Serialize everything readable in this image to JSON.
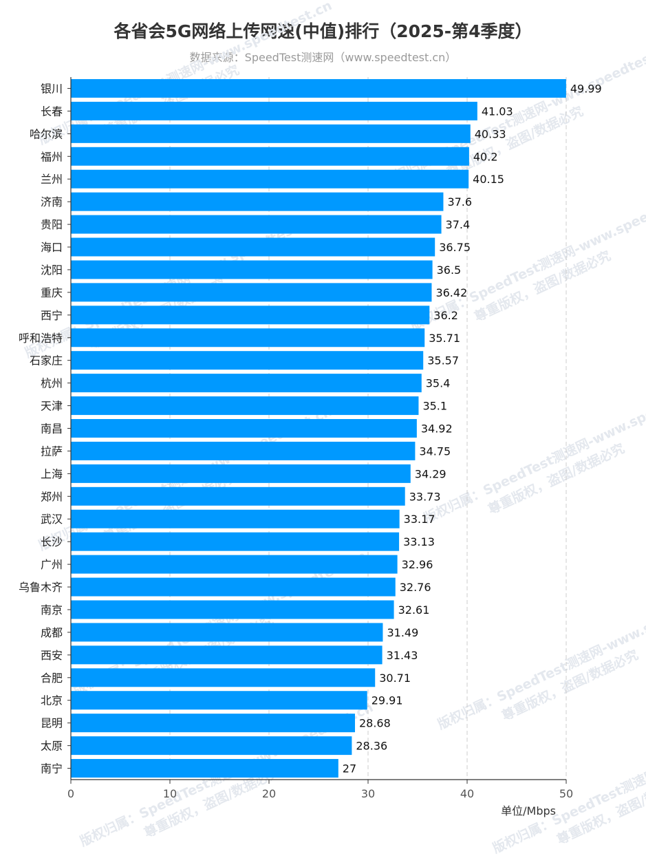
{
  "chart_data": {
    "type": "bar",
    "orientation": "horizontal",
    "title": "各省会5G网络上传网速(中值)排行（2025-第4季度）",
    "subtitle": "数据来源：SpeedTest测速网（www.speedtest.cn）",
    "xlabel": "单位/Mbps",
    "ylabel": "",
    "xlim": [
      0,
      50
    ],
    "xticks": [
      "0",
      "10",
      "20",
      "30",
      "40",
      "50"
    ],
    "grid": "vertical dashed",
    "bar_color": "#0099ff",
    "categories": [
      "银川",
      "长春",
      "哈尔滨",
      "福州",
      "兰州",
      "济南",
      "贵阳",
      "海口",
      "沈阳",
      "重庆",
      "西宁",
      "呼和浩特",
      "石家庄",
      "杭州",
      "天津",
      "南昌",
      "拉萨",
      "上海",
      "郑州",
      "武汉",
      "长沙",
      "广州",
      "乌鲁木齐",
      "南京",
      "成都",
      "西安",
      "合肥",
      "北京",
      "昆明",
      "太原",
      "南宁"
    ],
    "values": [
      49.99,
      41.03,
      40.33,
      40.2,
      40.15,
      37.6,
      37.4,
      36.75,
      36.5,
      36.42,
      36.2,
      35.71,
      35.57,
      35.4,
      35.1,
      34.92,
      34.75,
      34.29,
      33.73,
      33.17,
      33.13,
      32.96,
      32.76,
      32.61,
      31.49,
      31.43,
      30.71,
      29.91,
      28.68,
      28.36,
      27
    ],
    "value_labels": [
      "49.99",
      "41.03",
      "40.33",
      "40.2",
      "40.15",
      "37.6",
      "37.4",
      "36.75",
      "36.5",
      "36.42",
      "36.2",
      "35.71",
      "35.57",
      "35.4",
      "35.1",
      "34.92",
      "34.75",
      "34.29",
      "33.73",
      "33.17",
      "33.13",
      "32.96",
      "32.76",
      "32.61",
      "31.49",
      "31.43",
      "30.71",
      "29.91",
      "28.68",
      "28.36",
      "27"
    ]
  },
  "watermark": {
    "line1": "版权归属：SpeedTest测速网-www.speedtest.cn",
    "line2": "尊重版权，盗图/数据必究"
  }
}
